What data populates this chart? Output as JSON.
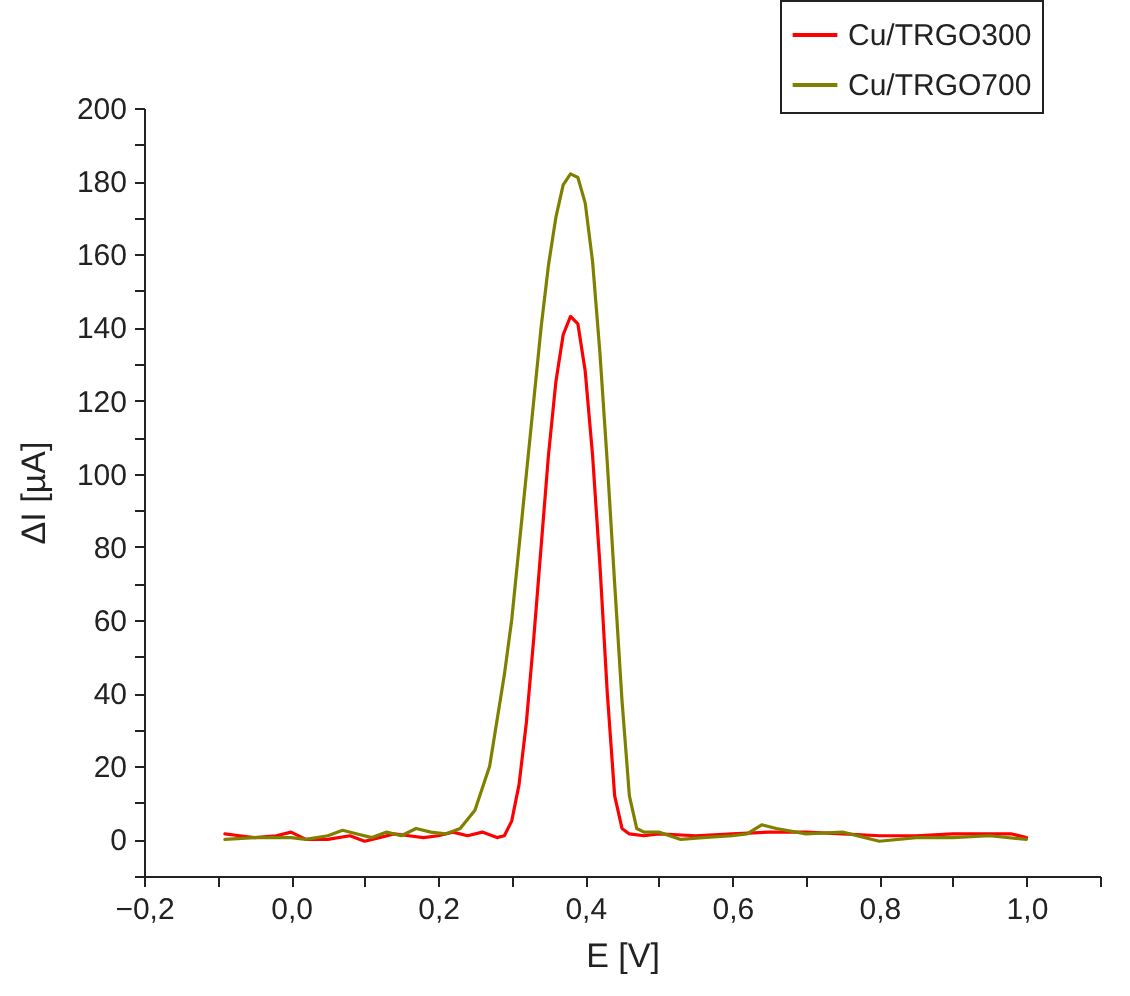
{
  "chart_data": {
    "type": "line",
    "xlabel": "E [V]",
    "ylabel": "ΔI [µA]",
    "xlim": [
      -0.2,
      1.1
    ],
    "ylim": [
      -10,
      200
    ],
    "xticks": [
      {
        "value": -0.2,
        "label": "−0,2"
      },
      {
        "value": -0.1,
        "label": null
      },
      {
        "value": 0,
        "label": "0,0"
      },
      {
        "value": 0.1,
        "label": null
      },
      {
        "value": 0.2,
        "label": "0,2"
      },
      {
        "value": 0.3,
        "label": null
      },
      {
        "value": 0.4,
        "label": "0,4"
      },
      {
        "value": 0.5,
        "label": null
      },
      {
        "value": 0.6,
        "label": "0,6"
      },
      {
        "value": 0.7,
        "label": null
      },
      {
        "value": 0.8,
        "label": "0,8"
      },
      {
        "value": 0.9,
        "label": null
      },
      {
        "value": 1.0,
        "label": "1,0"
      },
      {
        "value": 1.1,
        "label": null
      }
    ],
    "yticks": [
      {
        "value": -10,
        "label": null
      },
      0,
      {
        "value": 10,
        "label": null
      },
      20,
      {
        "value": 30,
        "label": null
      },
      40,
      {
        "value": 50,
        "label": null
      },
      60,
      {
        "value": 70,
        "label": null
      },
      80,
      {
        "value": 90,
        "label": null
      },
      100,
      {
        "value": 110,
        "label": null
      },
      120,
      {
        "value": 130,
        "label": null
      },
      140,
      {
        "value": 150,
        "label": null
      },
      160,
      {
        "value": 170,
        "label": null
      },
      180,
      {
        "value": 190,
        "label": null
      },
      200
    ],
    "legend": "top right",
    "line_style": "solid",
    "marker": "none",
    "series": [
      {
        "name": "Cu/TRGO300",
        "color": "#ff0000",
        "x": [
          -0.09,
          -0.07,
          -0.05,
          -0.02,
          0.0,
          0.02,
          0.05,
          0.08,
          0.1,
          0.12,
          0.14,
          0.16,
          0.18,
          0.2,
          0.22,
          0.24,
          0.26,
          0.28,
          0.29,
          0.3,
          0.31,
          0.32,
          0.33,
          0.34,
          0.35,
          0.36,
          0.37,
          0.38,
          0.39,
          0.4,
          0.41,
          0.42,
          0.43,
          0.44,
          0.45,
          0.46,
          0.48,
          0.5,
          0.55,
          0.6,
          0.65,
          0.7,
          0.75,
          0.8,
          0.85,
          0.9,
          0.95,
          0.98,
          1.0
        ],
        "values": [
          1.5,
          1,
          0.5,
          1,
          2,
          0,
          0,
          1,
          -0.5,
          0.5,
          1.5,
          1,
          0.5,
          1,
          2,
          1,
          2,
          0.5,
          1,
          5,
          15,
          32,
          55,
          80,
          105,
          125,
          138,
          143,
          141,
          128,
          105,
          75,
          40,
          12,
          3,
          1.5,
          1,
          1.5,
          1,
          1.5,
          2,
          2,
          1.5,
          1,
          1,
          1.5,
          1.5,
          1.5,
          0.5
        ]
      },
      {
        "name": "Cu/TRGO700",
        "color": "#808000",
        "x": [
          -0.09,
          -0.05,
          0.0,
          0.02,
          0.05,
          0.07,
          0.09,
          0.11,
          0.13,
          0.15,
          0.17,
          0.19,
          0.21,
          0.23,
          0.25,
          0.27,
          0.29,
          0.3,
          0.31,
          0.32,
          0.33,
          0.34,
          0.35,
          0.36,
          0.37,
          0.38,
          0.39,
          0.4,
          0.41,
          0.42,
          0.43,
          0.44,
          0.45,
          0.46,
          0.47,
          0.48,
          0.5,
          0.53,
          0.56,
          0.6,
          0.62,
          0.64,
          0.66,
          0.7,
          0.75,
          0.8,
          0.85,
          0.9,
          0.95,
          1.0
        ],
        "values": [
          0,
          0.5,
          0.5,
          0,
          1,
          2.5,
          1.5,
          0.5,
          2,
          1,
          3,
          2,
          1.5,
          3,
          8,
          20,
          45,
          60,
          80,
          100,
          120,
          140,
          157,
          170,
          179,
          182,
          181,
          174,
          158,
          133,
          103,
          70,
          38,
          12,
          3,
          2,
          2,
          0,
          0.5,
          1,
          1.5,
          4,
          3,
          1.5,
          2,
          -0.5,
          0.5,
          0.5,
          1,
          0
        ]
      }
    ]
  }
}
